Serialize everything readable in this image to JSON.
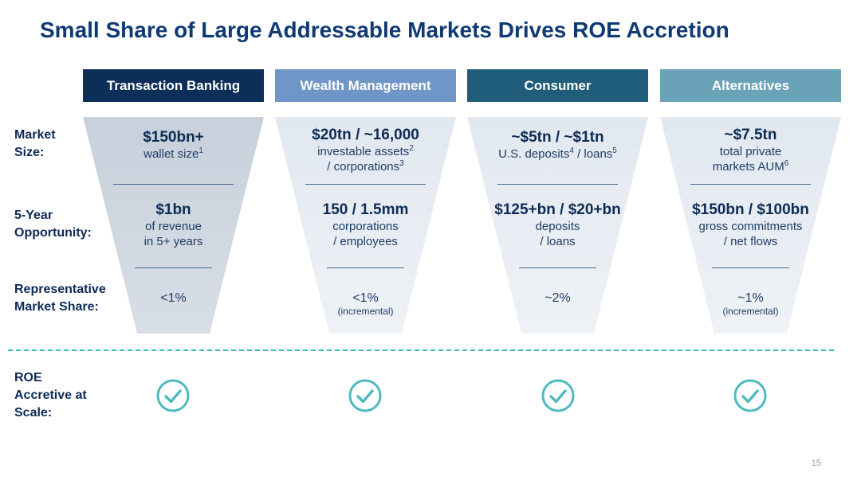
{
  "title": "Small Share of Large Addressable Markets Drives ROE Accretion",
  "row_labels": {
    "market_size": [
      "Market",
      "Size:"
    ],
    "five_year": [
      "5-Year",
      "Opportunity:"
    ],
    "share": [
      "Representative",
      "Market Share:"
    ],
    "roe": [
      "ROE",
      "Accretive at",
      "Scale:"
    ]
  },
  "columns": [
    {
      "header": "Transaction Banking",
      "header_color": "#0c2f5a",
      "market_size_bold": "$150bn+",
      "market_size_line1": "wallet size",
      "market_size_line1_sup": "1",
      "market_size_line2": "",
      "market_size_line2_sup": "",
      "opportunity_bold": "$1bn",
      "opportunity_line1": "of revenue",
      "opportunity_line2": "in 5+ years",
      "share": "<1%",
      "share_note": ""
    },
    {
      "header": "Wealth Management",
      "header_color": "#6f96c6",
      "market_size_bold": "$20tn / ~16,000",
      "market_size_line1": "investable assets",
      "market_size_line1_sup": "2",
      "market_size_line2": "/ corporations",
      "market_size_line2_sup": "3",
      "opportunity_bold": "150 / 1.5mm",
      "opportunity_line1": "corporations",
      "opportunity_line2": "/ employees",
      "share": "<1%",
      "share_note": "(incremental)"
    },
    {
      "header": "Consumer",
      "header_color": "#1f5d7a",
      "market_size_bold": "~$5tn / ~$1tn",
      "market_size_line1": "U.S. deposits",
      "market_size_line1_sup": "4",
      "market_size_line1_tail": " / loans",
      "market_size_line1_tail_sup": "5",
      "market_size_line2": "",
      "market_size_line2_sup": "",
      "opportunity_bold": "$125+bn / $20+bn",
      "opportunity_line1": "deposits",
      "opportunity_line2": "/ loans",
      "share": "~2%",
      "share_note": ""
    },
    {
      "header": "Alternatives",
      "header_color": "#6aa3b8",
      "market_size_bold": "~$7.5tn",
      "market_size_line1": "total private",
      "market_size_line1_sup": "",
      "market_size_line2": "markets AUM",
      "market_size_line2_sup": "6",
      "opportunity_bold": "$150bn / $100bn",
      "opportunity_line1": "gross commitments",
      "opportunity_line2": "/ net flows",
      "share": "~1%",
      "share_note": "(incremental)"
    }
  ],
  "check_icon": "check-circle-icon",
  "check_color": "#4fb9bf",
  "page_number": "15"
}
